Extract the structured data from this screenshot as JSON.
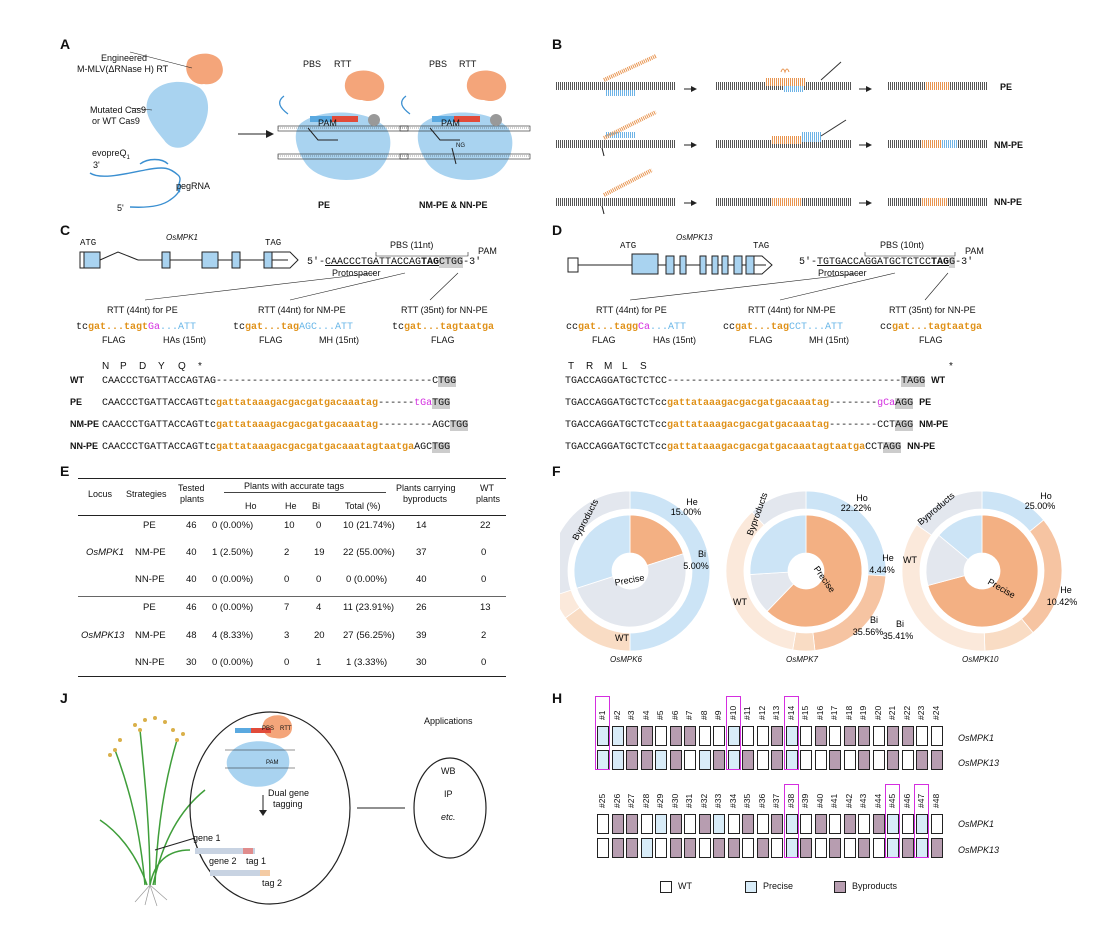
{
  "labels": {
    "A": "A",
    "B": "B",
    "C": "C",
    "D": "D",
    "E": "E",
    "F": "F",
    "H": "H",
    "J": "J"
  },
  "panelA": {
    "rt": "Engineered",
    "rt2": "M-MLV(ΔRNase H) RT",
    "cas": "Mutated Cas9",
    "cas2": "or WT Cas9",
    "evopreq": "evopreQ",
    "evopreq_sub": "1",
    "pegrna": "pegRNA",
    "three": "3'",
    "five": "5'",
    "pbs": "PBS",
    "rtt": "RTT",
    "pam": "PAM",
    "pe": "PE",
    "nm_nn": "NM-PE & NN-PE",
    "ng": "NG"
  },
  "panelB": {
    "rows": [
      "PE",
      "NM-PE",
      "NN-PE"
    ]
  },
  "panelC": {
    "gene": "OsMPK1",
    "atg": "ATG",
    "tag": "TAG",
    "pbs": "PBS (11nt)",
    "pam": "PAM",
    "seq_pre": "5′-",
    "seq_proto": "CAACCCTGATTACCAG",
    "seq_tag": "TAG",
    "seq_pam": "CTGG",
    "seq_post": "-3′",
    "protospacer": "Protospacer",
    "rtt1": "RTT (44nt) for PE",
    "rtt2": "RTT (44nt) for NM-PE",
    "rtt3": "RTT (35nt) for NN-PE",
    "rtt1_seq": [
      "tc",
      "gat...tagt",
      "Ga",
      "...ATT"
    ],
    "rtt2_seq": [
      "tc",
      "gat...tag",
      "AGC...ATT"
    ],
    "rtt3_seq": [
      "tc",
      "gat...tagtaatga"
    ],
    "flag": "FLAG",
    "has": "HAs (15nt)",
    "mh": "MH (15nt)",
    "aa": [
      "N",
      "P",
      "D",
      "Y",
      "Q",
      "*"
    ],
    "rows": [
      {
        "name": "WT",
        "black": "CAACCCTGATTACCAGTAG",
        "dash": "------------------------------------",
        "end_black": "C",
        "end_grey": "TGG"
      },
      {
        "name": "PE",
        "black": "CAACCCTGATTACCAGTtc",
        "orange": "gattataaagacgacgatgacaaatag",
        "dash": "------",
        "mag": "tGa",
        "end_grey": "TGG"
      },
      {
        "name": "NM-PE",
        "black": "CAACCCTGATTACCAGTtc",
        "orange": "gattataaagacgacgatgacaaatag",
        "dash": "---------",
        "end_black": "AGC",
        "end_grey": "TGG"
      },
      {
        "name": "NN-PE",
        "black": "CAACCCTGATTACCAGTtc",
        "orange": "gattataaagacgacgatgacaaatagtaatga",
        "end_black": "AGC",
        "end_grey": "TGG"
      }
    ]
  },
  "panelD": {
    "gene": "OsMPK13",
    "atg": "ATG",
    "tag": "TAG",
    "pbs": "PBS (10nt)",
    "pam": "PAM",
    "seq_pre": "5′-",
    "seq_proto": "TGTGACCAGGATGCTCTCC",
    "seq_tag": "TAG",
    "seq_pam": "G",
    "seq_post": "-3′",
    "protospacer": "Protospacer",
    "rtt1": "RTT (44nt) for PE",
    "rtt2": "RTT (44nt) for NM-PE",
    "rtt3": "RTT (35nt) for NN-PE",
    "rtt1_seq": [
      "cc",
      "gat...tagg",
      "Ca",
      "...ATT"
    ],
    "rtt2_seq": [
      "cc",
      "gat...tag",
      "CCT...ATT"
    ],
    "rtt3_seq": [
      "cc",
      "gat...tagtaatga"
    ],
    "flag": "FLAG",
    "has": "HAs (15nt)",
    "mh": "MH (15nt)",
    "aa": [
      "T",
      "R",
      "M",
      "L",
      "S",
      "*"
    ],
    "rows": [
      {
        "name": "WT",
        "black": "TGACCAGGATGCTCTCC",
        "dash": "---------------------------------------",
        "end_grey": "TAGG"
      },
      {
        "name": "PE",
        "black": "TGACCAGGATGCTCTcc",
        "orange": "gattataaagacgacgatgacaaatag",
        "dash": "--------",
        "mag": "gCa",
        "end_grey": "AGG"
      },
      {
        "name": "NM-PE",
        "black": "TGACCAGGATGCTCTcc",
        "orange": "gattataaagacgacgatgacaaatag",
        "dash": "--------",
        "end_black": "CCT",
        "end_grey": "AGG"
      },
      {
        "name": "NN-PE",
        "black": "TGACCAGGATGCTCTcc",
        "orange": "gattataaagacgacgatgacaaatagtaatga",
        "end_black": "CCT",
        "end_grey": "AGG"
      }
    ]
  },
  "panelE": {
    "headers": {
      "locus": "Locus",
      "strategies": "Strategies",
      "tested": "Tested",
      "tested2": "plants",
      "accurate": "Plants with accurate tags",
      "ho": "Ho",
      "he": "He",
      "bi": "Bi",
      "total": "Total (%)",
      "carrying": "Plants carrying",
      "carrying2": "byproducts",
      "wt": "WT",
      "wt2": "plants"
    },
    "rows": [
      {
        "locus": "",
        "strategy": "PE",
        "tested": "46",
        "ho": "0 (0.00%)",
        "he": "10",
        "bi": "0",
        "total": "10 (21.74%)",
        "byp": "14",
        "wt": "22"
      },
      {
        "locus": "OsMPK1",
        "strategy": "NM-PE",
        "tested": "40",
        "ho": "1 (2.50%)",
        "he": "2",
        "bi": "19",
        "total": "22 (55.00%)",
        "byp": "37",
        "wt": "0"
      },
      {
        "locus": "",
        "strategy": "NN-PE",
        "tested": "40",
        "ho": "0 (0.00%)",
        "he": "0",
        "bi": "0",
        "total": "0 (0.00%)",
        "byp": "40",
        "wt": "0"
      },
      {
        "locus": "",
        "strategy": "PE",
        "tested": "46",
        "ho": "0 (0.00%)",
        "he": "7",
        "bi": "4",
        "total": "11 (23.91%)",
        "byp": "26",
        "wt": "13"
      },
      {
        "locus": "OsMPK13",
        "strategy": "NM-PE",
        "tested": "48",
        "ho": "4 (8.33%)",
        "he": "3",
        "bi": "20",
        "total": "27 (56.25%)",
        "byp": "39",
        "wt": "2"
      },
      {
        "locus": "",
        "strategy": "NN-PE",
        "tested": "30",
        "ho": "0 (0.00%)",
        "he": "0",
        "bi": "1",
        "total": "1 (3.33%)",
        "byp": "30",
        "wt": "0"
      }
    ]
  },
  "chart_data": [
    {
      "type": "pie",
      "title": "OsMPK6",
      "inner": {
        "Precise": 20.0,
        "Byproducts": 30.0,
        "WT": 50.0
      },
      "outer": {
        "He": "15.00%",
        "Bi": "5.00%"
      },
      "labels": [
        "Byproducts",
        "Precise",
        "WT",
        "He",
        "15.00%",
        "Bi",
        "5.00%"
      ]
    },
    {
      "type": "pie",
      "title": "OsMPK7",
      "inner": {
        "Precise": 62.22,
        "Byproducts": 26.0,
        "WT": 11.78
      },
      "outer": {
        "Ho": "22.22%",
        "He": "4.44%",
        "Bi": "35.56%"
      },
      "labels": [
        "Byproducts",
        "Precise",
        "WT",
        "Ho",
        "22.22%",
        "He",
        "4.44%",
        "Bi",
        "35.56%"
      ]
    },
    {
      "type": "pie",
      "title": "OsMPK10",
      "inner": {
        "Precise": 70.83,
        "Byproducts": 14.0,
        "WT": 15.17
      },
      "outer": {
        "Ho": "25.00%",
        "He": "10.42%",
        "Bi": "35.41%"
      },
      "labels": [
        "Byproducts",
        "Precise",
        "WT",
        "Ho",
        "25.00%",
        "He",
        "10.42%",
        "Bi",
        "35.41%"
      ]
    }
  ],
  "panelJ": {
    "pbs": "PBS",
    "rtt": "RTT",
    "pam": "PAM",
    "dual": "Dual gene",
    "tagging": "tagging",
    "gene1": "gene 1",
    "tag1": "tag 1",
    "gene2": "gene 2",
    "tag2": "tag 2",
    "apps": "Applications",
    "wb": "WB",
    "ip": "IP",
    "etc": "etc."
  },
  "panelH": {
    "nums1": [
      "#1",
      "#2",
      "#3",
      "#4",
      "#5",
      "#6",
      "#7",
      "#8",
      "#9",
      "#10",
      "#11",
      "#12",
      "#13",
      "#14",
      "#15",
      "#16",
      "#17",
      "#18",
      "#19",
      "#20",
      "#21",
      "#22",
      "#23",
      "#24"
    ],
    "nums2": [
      "#25",
      "#26",
      "#27",
      "#28",
      "#29",
      "#30",
      "#31",
      "#32",
      "#33",
      "#34",
      "#35",
      "#36",
      "#37",
      "#38",
      "#39",
      "#40",
      "#41",
      "#42",
      "#43",
      "#44",
      "#45",
      "#46",
      "#47",
      "#48"
    ],
    "highlight1": [
      0,
      9,
      13
    ],
    "highlight2": [
      13,
      20,
      22
    ],
    "row_labels": [
      "OsMPK1",
      "OsMPK13"
    ],
    "grid1": {
      "mpk1": [
        "P",
        "P",
        "B",
        "B",
        "W",
        "B",
        "B",
        "W",
        "W",
        "P",
        "W",
        "W",
        "B",
        "P",
        "W",
        "B",
        "W",
        "B",
        "B",
        "W",
        "B",
        "B",
        "W",
        "W"
      ],
      "mpk13": [
        "P",
        "P",
        "B",
        "B",
        "P",
        "B",
        "W",
        "P",
        "B",
        "P",
        "B",
        "W",
        "B",
        "P",
        "W",
        "W",
        "B",
        "W",
        "B",
        "W",
        "B",
        "W",
        "B",
        "B"
      ]
    },
    "grid2": {
      "mpk1": [
        "W",
        "B",
        "B",
        "W",
        "P",
        "B",
        "W",
        "B",
        "P",
        "W",
        "B",
        "W",
        "B",
        "P",
        "W",
        "B",
        "W",
        "B",
        "W",
        "B",
        "P",
        "W",
        "P",
        "W"
      ],
      "mpk13": [
        "W",
        "B",
        "B",
        "P",
        "W",
        "B",
        "B",
        "W",
        "B",
        "B",
        "W",
        "B",
        "W",
        "P",
        "B",
        "W",
        "B",
        "W",
        "B",
        "W",
        "P",
        "B",
        "P",
        "B"
      ]
    },
    "legend": {
      "wt": "WT",
      "precise": "Precise",
      "byproducts": "Byproducts"
    }
  }
}
